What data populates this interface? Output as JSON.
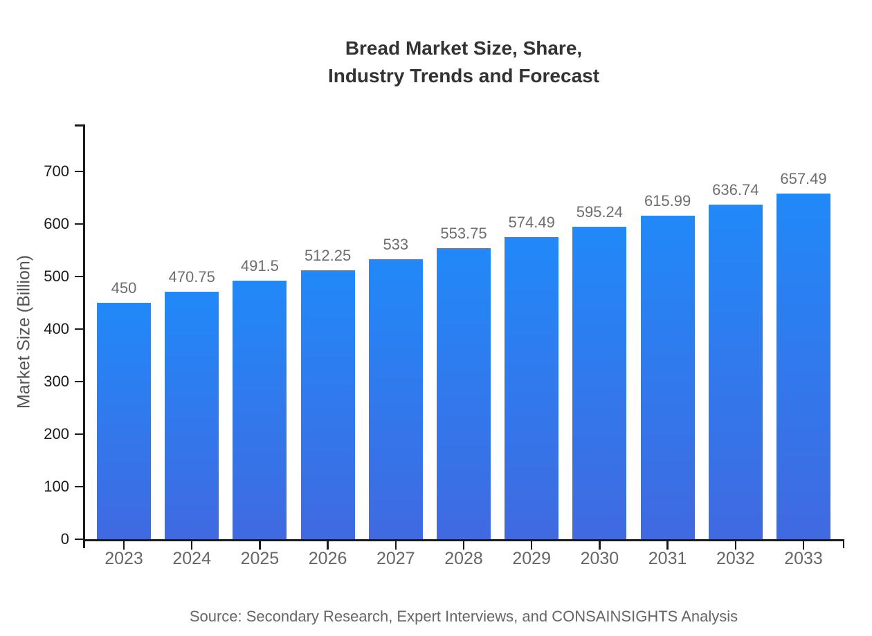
{
  "chart_data": {
    "type": "bar",
    "title": "Bread Market Size, Share, Industry Trends and Forecast",
    "title_lines": [
      "Bread Market Size, Share,",
      "Industry Trends and Forecast"
    ],
    "categories": [
      "2023",
      "2024",
      "2025",
      "2026",
      "2027",
      "2028",
      "2029",
      "2030",
      "2031",
      "2032",
      "2033"
    ],
    "values": [
      450,
      470.75,
      491.5,
      512.25,
      533,
      553.75,
      574.49,
      595.24,
      615.99,
      636.74,
      657.49
    ],
    "value_labels": [
      "450",
      "470.75",
      "491.5",
      "512.25",
      "533",
      "553.75",
      "574.49",
      "595.24",
      "615.99",
      "636.74",
      "657.49"
    ],
    "xlabel": "",
    "ylabel": "Market Size (Billion)",
    "yticks": [
      0,
      100,
      200,
      300,
      400,
      500,
      600,
      700
    ],
    "ylim": [
      0,
      789
    ],
    "grid": "off",
    "legend": "none",
    "source": "Source: Secondary Research, Expert Interviews, and CONSAINSIGHTS Analysis",
    "colors": {
      "bar_gradient_top": "#2189f8",
      "bar_gradient_bottom": "#4169e1",
      "title_text": "#333333",
      "axis_line": "#1a1a1a",
      "ytick_text": "#1a1a1a",
      "xtick_text": "#666666",
      "value_label_text": "#6e6e6e",
      "ylabel_text": "#555555",
      "source_text": "#666666"
    }
  }
}
